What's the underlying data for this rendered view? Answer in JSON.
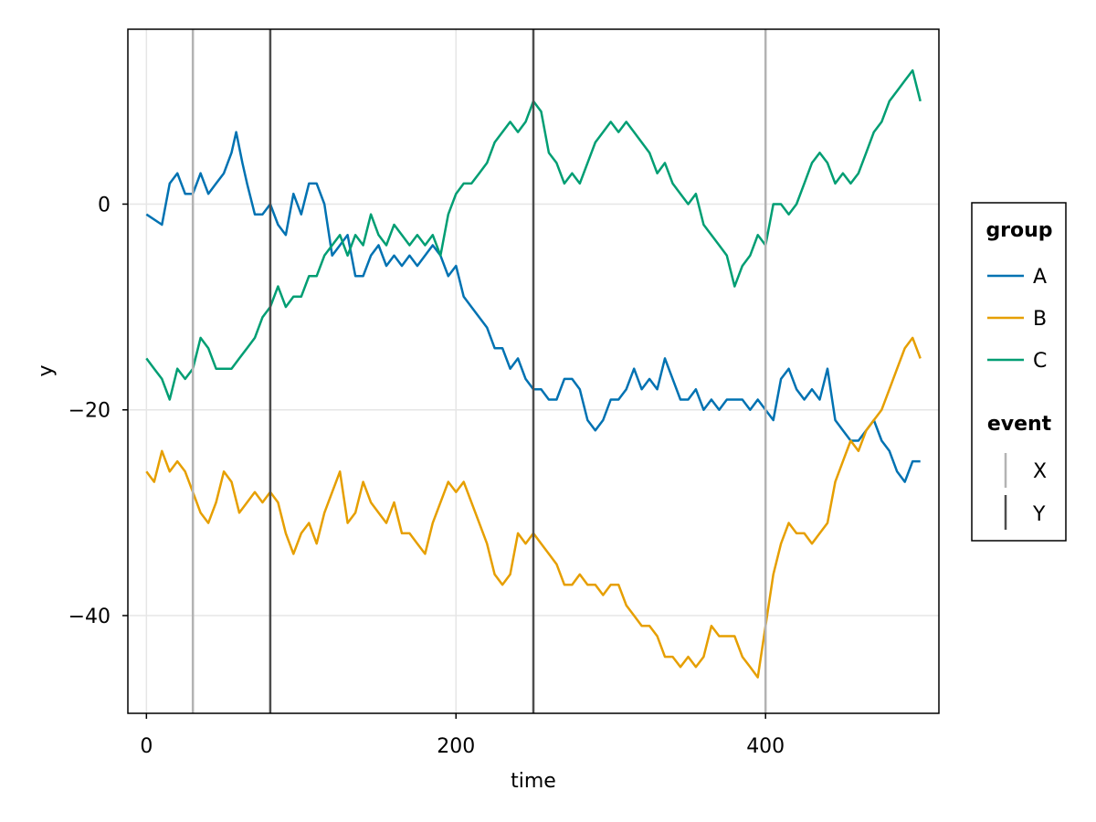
{
  "chart_data": {
    "type": "line",
    "xlabel": "time",
    "ylabel": "y",
    "xlim": [
      -12,
      512
    ],
    "ylim": [
      -49.5,
      17
    ],
    "x_ticks": [
      0,
      200,
      400
    ],
    "y_ticks": [
      0,
      -20,
      -40
    ],
    "x_tick_labels": [
      "0",
      "200",
      "400"
    ],
    "y_tick_labels": [
      "0",
      "−20",
      "−40"
    ],
    "grid": true,
    "legend_placement": "right",
    "legend_groups": [
      {
        "title": "group",
        "entries": [
          {
            "label": "A",
            "color": "#0072B2"
          },
          {
            "label": "B",
            "color": "#E69F00"
          },
          {
            "label": "C",
            "color": "#009E73"
          }
        ]
      },
      {
        "title": "event",
        "entries": [
          {
            "label": "X",
            "color": "#b3b3b3"
          },
          {
            "label": "Y",
            "color": "#4d4d4d"
          }
        ]
      }
    ],
    "events": [
      {
        "x": 30,
        "event": "X"
      },
      {
        "x": 80,
        "event": "Y"
      },
      {
        "x": 250,
        "event": "Y"
      },
      {
        "x": 400,
        "event": "X"
      }
    ],
    "series": [
      {
        "name": "A",
        "color": "#0072B2",
        "x": [
          0,
          10,
          15,
          20,
          25,
          30,
          35,
          40,
          45,
          50,
          55,
          58,
          62,
          65,
          70,
          75,
          80,
          85,
          90,
          95,
          100,
          105,
          110,
          115,
          120,
          125,
          130,
          135,
          140,
          145,
          150,
          155,
          160,
          165,
          170,
          175,
          180,
          185,
          190,
          195,
          200,
          205,
          210,
          215,
          220,
          225,
          230,
          235,
          240,
          245,
          250,
          255,
          260,
          265,
          270,
          275,
          280,
          285,
          290,
          295,
          300,
          305,
          310,
          315,
          320,
          325,
          330,
          335,
          340,
          345,
          350,
          355,
          360,
          365,
          370,
          375,
          380,
          385,
          390,
          395,
          400,
          405,
          410,
          415,
          420,
          425,
          430,
          435,
          440,
          445,
          450,
          455,
          460,
          465,
          470,
          475,
          480,
          485,
          490,
          495,
          500
        ],
        "values": [
          -1,
          -2,
          2,
          3,
          1,
          1,
          3,
          1,
          2,
          3,
          5,
          7,
          4,
          2,
          -1,
          -1,
          0,
          -2,
          -3,
          1,
          -1,
          2,
          2,
          0,
          -5,
          -4,
          -3,
          -7,
          -7,
          -5,
          -4,
          -6,
          -5,
          -6,
          -5,
          -6,
          -5,
          -4,
          -5,
          -7,
          -6,
          -9,
          -10,
          -11,
          -12,
          -14,
          -14,
          -16,
          -15,
          -17,
          -18,
          -18,
          -19,
          -19,
          -17,
          -17,
          -18,
          -21,
          -22,
          -21,
          -19,
          -19,
          -18,
          -16,
          -18,
          -17,
          -18,
          -15,
          -17,
          -19,
          -19,
          -18,
          -20,
          -19,
          -20,
          -19,
          -19,
          -19,
          -20,
          -19,
          -20,
          -21,
          -17,
          -16,
          -18,
          -19,
          -18,
          -19,
          -16,
          -21,
          -22,
          -23,
          -23,
          -22,
          -21,
          -23,
          -24,
          -26,
          -27,
          -25,
          -25
        ]
      },
      {
        "name": "B",
        "color": "#E69F00",
        "x": [
          0,
          5,
          10,
          15,
          20,
          25,
          30,
          35,
          40,
          45,
          50,
          55,
          60,
          65,
          70,
          75,
          80,
          85,
          90,
          95,
          100,
          105,
          110,
          115,
          120,
          125,
          130,
          135,
          140,
          145,
          150,
          155,
          160,
          165,
          170,
          175,
          180,
          185,
          190,
          195,
          200,
          205,
          210,
          215,
          220,
          225,
          230,
          235,
          240,
          245,
          250,
          255,
          260,
          265,
          270,
          275,
          280,
          285,
          290,
          295,
          300,
          305,
          310,
          315,
          320,
          325,
          330,
          335,
          340,
          345,
          350,
          355,
          360,
          365,
          370,
          375,
          380,
          385,
          390,
          395,
          400,
          405,
          410,
          415,
          420,
          425,
          430,
          435,
          440,
          445,
          450,
          455,
          460,
          465,
          470,
          475,
          480,
          485,
          490,
          495,
          500
        ],
        "values": [
          -26,
          -27,
          -24,
          -26,
          -25,
          -26,
          -28,
          -30,
          -31,
          -29,
          -26,
          -27,
          -30,
          -29,
          -28,
          -29,
          -28,
          -29,
          -32,
          -34,
          -32,
          -31,
          -33,
          -30,
          -28,
          -26,
          -31,
          -30,
          -27,
          -29,
          -30,
          -31,
          -29,
          -32,
          -32,
          -33,
          -34,
          -31,
          -29,
          -27,
          -28,
          -27,
          -29,
          -31,
          -33,
          -36,
          -37,
          -36,
          -32,
          -33,
          -32,
          -33,
          -34,
          -35,
          -37,
          -37,
          -36,
          -37,
          -37,
          -38,
          -37,
          -37,
          -39,
          -40,
          -41,
          -41,
          -42,
          -44,
          -44,
          -45,
          -44,
          -45,
          -44,
          -41,
          -42,
          -42,
          -42,
          -44,
          -45,
          -46,
          -41,
          -36,
          -33,
          -31,
          -32,
          -32,
          -33,
          -32,
          -31,
          -27,
          -25,
          -23,
          -24,
          -22,
          -21,
          -20,
          -18,
          -16,
          -14,
          -13,
          -15
        ]
      },
      {
        "name": "C",
        "color": "#009E73",
        "x": [
          0,
          5,
          10,
          15,
          20,
          25,
          30,
          35,
          40,
          45,
          50,
          55,
          60,
          65,
          70,
          75,
          80,
          85,
          90,
          95,
          100,
          105,
          110,
          115,
          120,
          125,
          130,
          135,
          140,
          145,
          150,
          155,
          160,
          165,
          170,
          175,
          180,
          185,
          190,
          195,
          200,
          205,
          210,
          215,
          220,
          225,
          230,
          235,
          240,
          245,
          250,
          255,
          260,
          265,
          270,
          275,
          280,
          285,
          290,
          295,
          300,
          305,
          310,
          315,
          320,
          325,
          330,
          335,
          340,
          345,
          350,
          355,
          360,
          365,
          370,
          375,
          380,
          385,
          390,
          395,
          400,
          405,
          410,
          415,
          420,
          425,
          430,
          435,
          440,
          445,
          450,
          455,
          460,
          465,
          470,
          475,
          480,
          485,
          490,
          495,
          500
        ],
        "values": [
          -15,
          -16,
          -17,
          -19,
          -16,
          -17,
          -16,
          -13,
          -14,
          -16,
          -16,
          -16,
          -15,
          -14,
          -13,
          -11,
          -10,
          -8,
          -10,
          -9,
          -9,
          -7,
          -7,
          -5,
          -4,
          -3,
          -5,
          -3,
          -4,
          -1,
          -3,
          -4,
          -2,
          -3,
          -4,
          -3,
          -4,
          -3,
          -5,
          -1,
          1,
          2,
          2,
          3,
          4,
          6,
          7,
          8,
          7,
          8,
          10,
          9,
          5,
          4,
          2,
          3,
          2,
          4,
          6,
          7,
          8,
          7,
          8,
          7,
          6,
          5,
          3,
          4,
          2,
          1,
          0,
          1,
          -2,
          -3,
          -4,
          -5,
          -8,
          -6,
          -5,
          -3,
          -4,
          0,
          0,
          -1,
          0,
          2,
          4,
          5,
          4,
          2,
          3,
          2,
          3,
          5,
          7,
          8,
          10,
          11,
          12,
          13,
          10
        ]
      }
    ]
  }
}
